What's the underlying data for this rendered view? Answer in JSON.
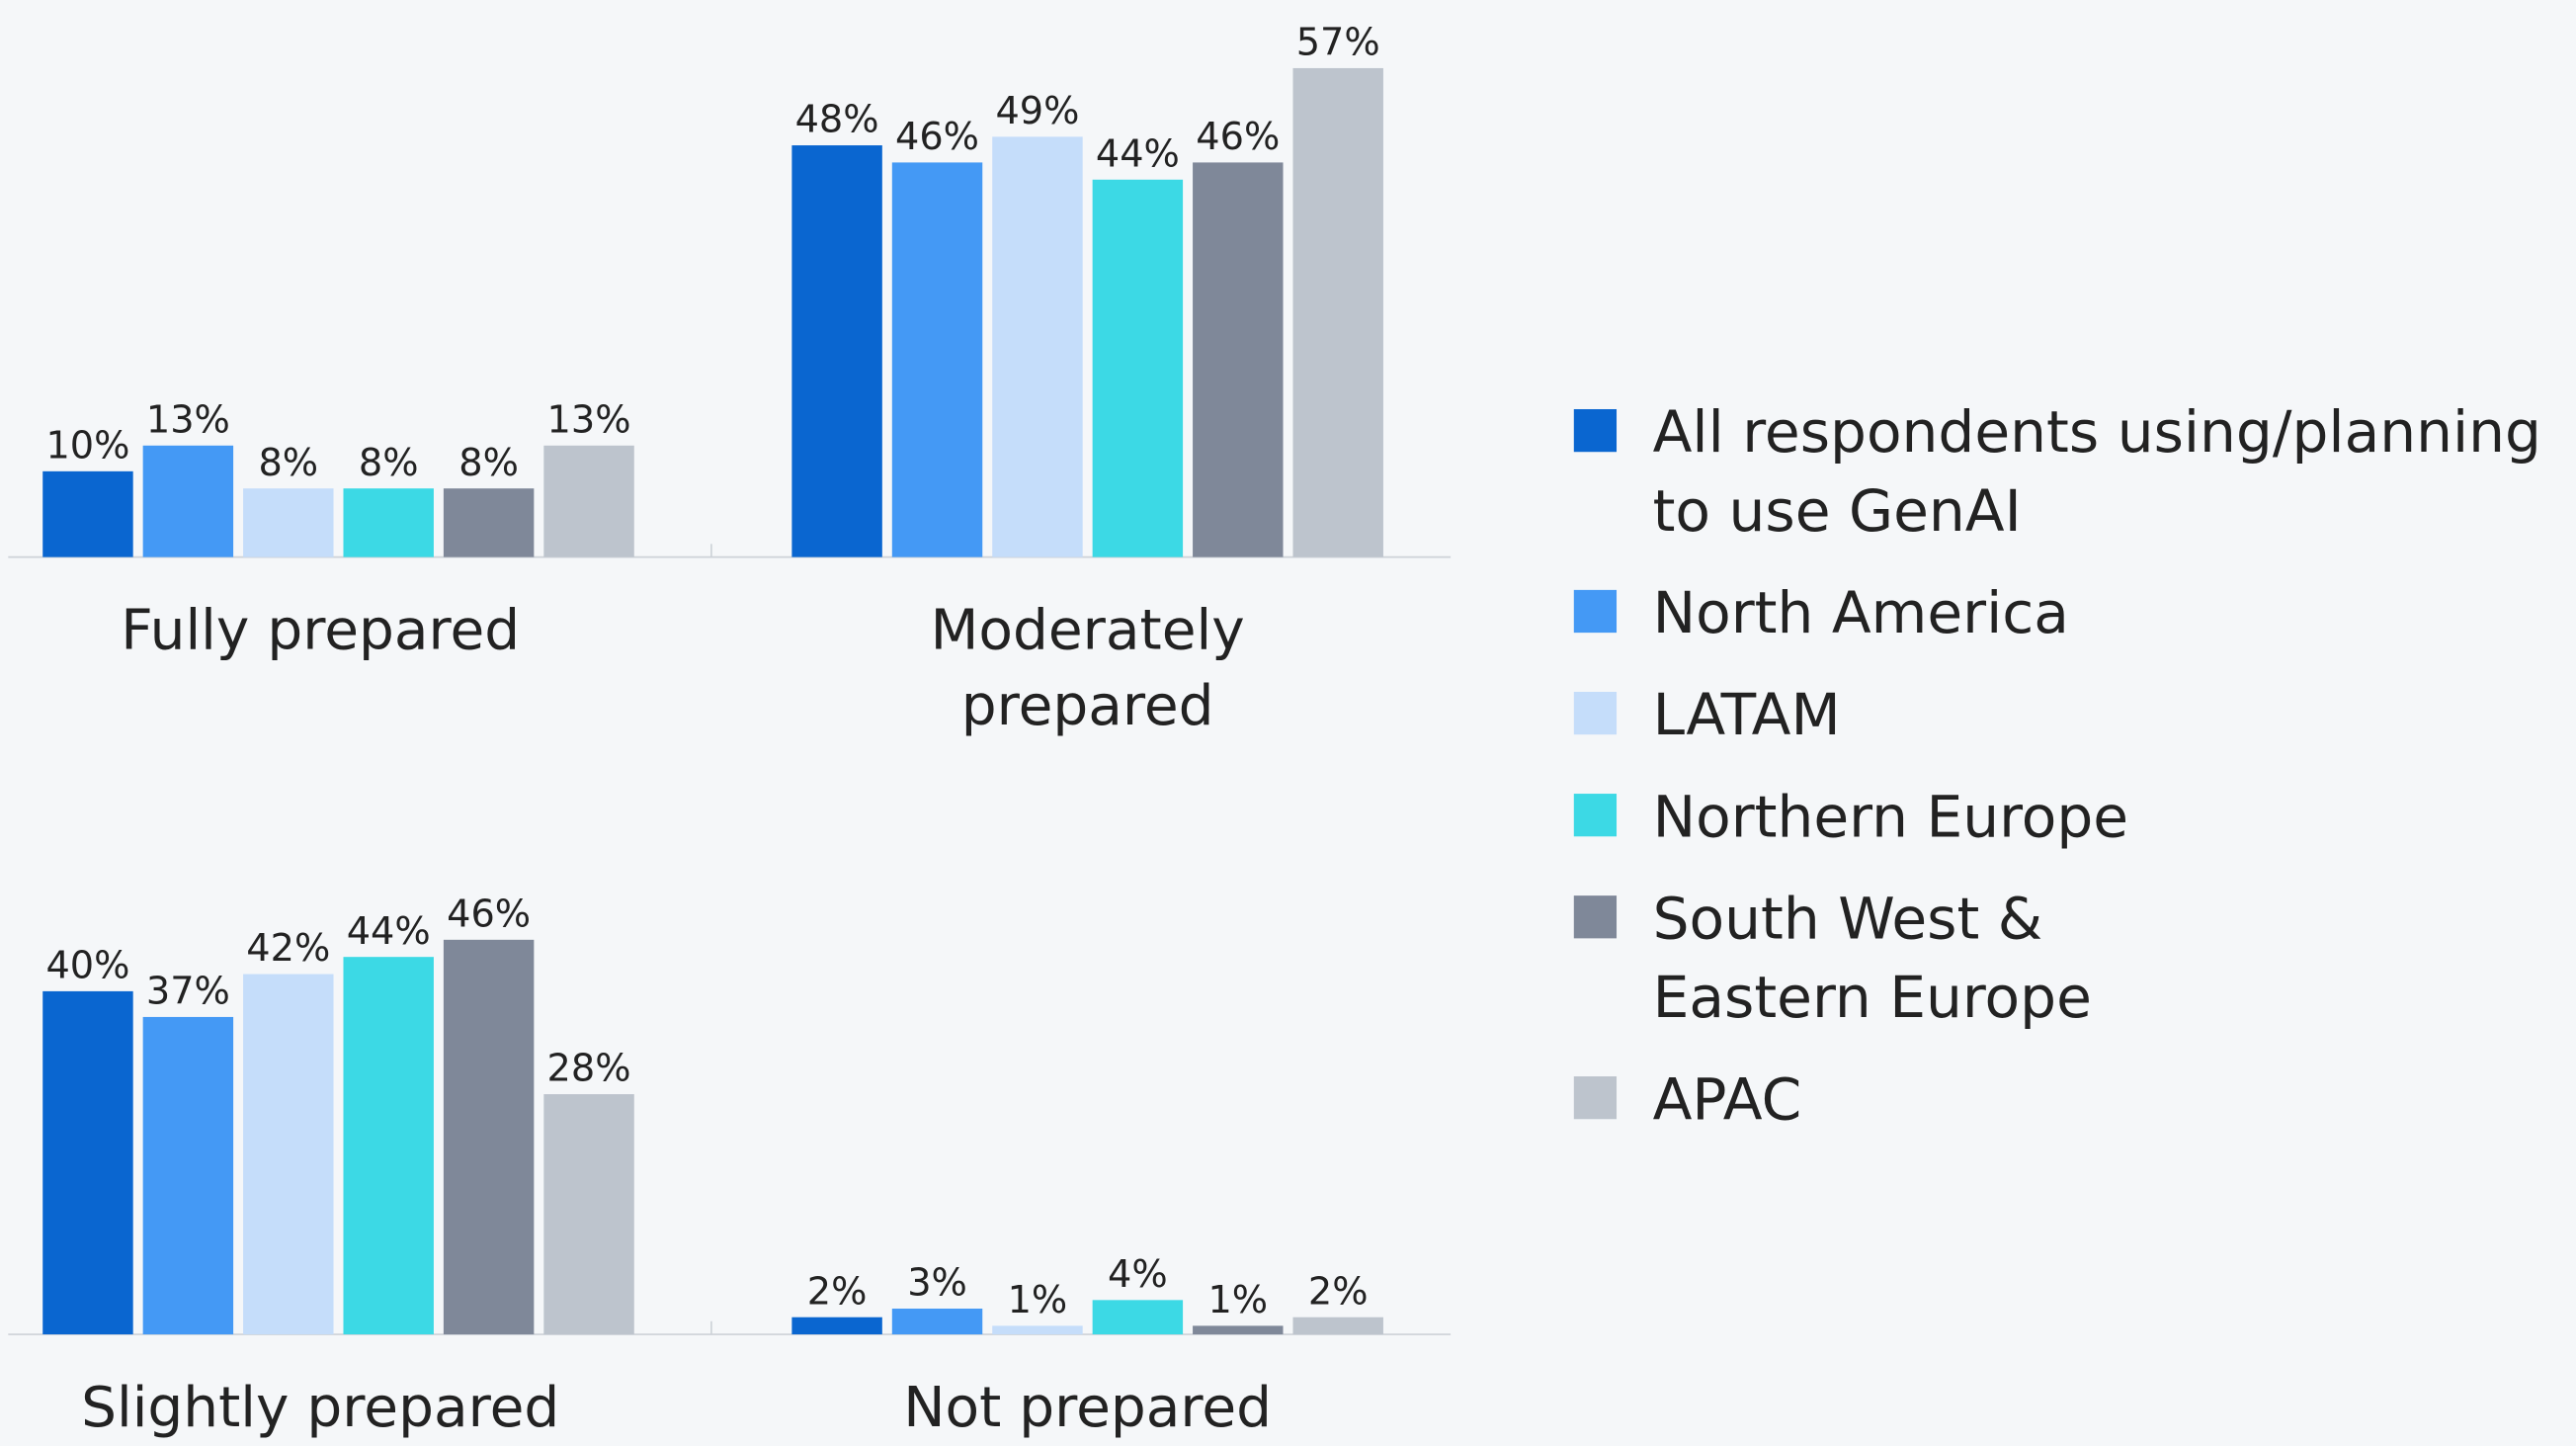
{
  "chart_data": {
    "type": "bar",
    "categories": [
      "Fully prepared",
      "Moderately prepared",
      "Slightly prepared",
      "Not prepared"
    ],
    "series": [
      {
        "name": "All respondents using/planning to use GenAI",
        "color": "#0a66d0",
        "values": [
          10,
          48,
          40,
          2
        ],
        "value_labels": [
          "10%",
          "48%",
          "40%",
          "2%"
        ]
      },
      {
        "name": "North America",
        "color": "#4499f5",
        "values": [
          13,
          46,
          37,
          3
        ],
        "value_labels": [
          "13%",
          "46%",
          "37%",
          "3%"
        ]
      },
      {
        "name": "LATAM",
        "color": "#c5ddfa",
        "values": [
          8,
          49,
          42,
          1
        ],
        "value_labels": [
          "8%",
          "49%",
          "42%",
          "1%"
        ]
      },
      {
        "name": "Northern Europe",
        "color": "#3cd9e5",
        "values": [
          8,
          44,
          44,
          4
        ],
        "value_labels": [
          "8%",
          "44%",
          "44%",
          "4%"
        ]
      },
      {
        "name": "South West & Eastern Europe",
        "color": "#7f8899",
        "values": [
          8,
          46,
          46,
          1
        ],
        "value_labels": [
          "8%",
          "46%",
          "46%",
          "1%"
        ]
      },
      {
        "name": "APAC",
        "color": "#bdc4cd",
        "values": [
          13,
          57,
          28,
          2
        ],
        "value_labels": [
          "13%",
          "57%",
          "28%",
          "2%"
        ]
      }
    ],
    "legend": "right"
  }
}
